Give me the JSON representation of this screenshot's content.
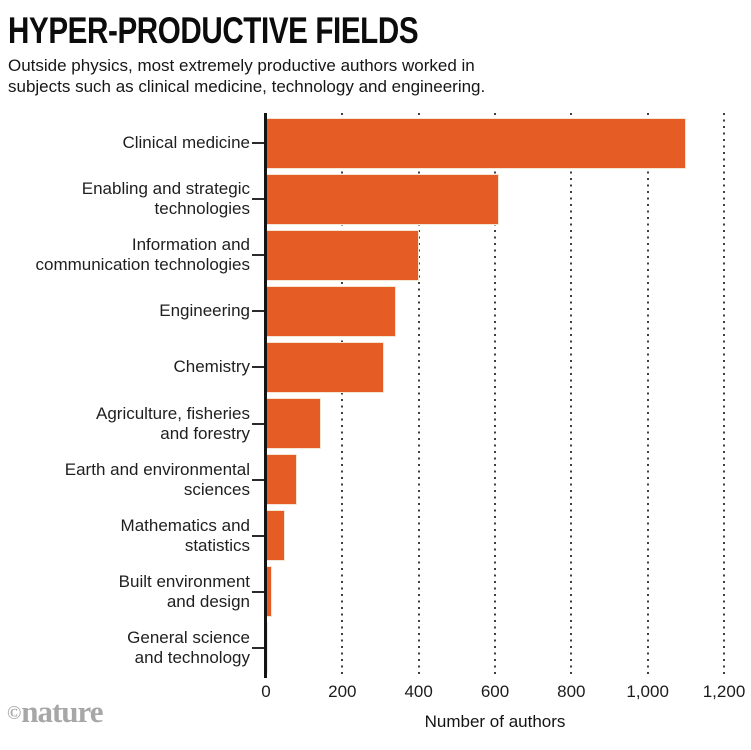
{
  "header": {
    "title": "HYPER-PRODUCTIVE FIELDS",
    "subtitle_lines": [
      "Outside physics, most extremely productive authors worked in",
      "subjects such as clinical medicine, technology and engineering."
    ]
  },
  "footer": {
    "credit_symbol": "©",
    "credit_name": "nature"
  },
  "chart_data": {
    "type": "bar",
    "orientation": "horizontal",
    "title": "HYPER-PRODUCTIVE FIELDS",
    "subtitle": "Outside physics, most extremely productive authors worked in subjects such as clinical medicine, technology and engineering.",
    "categories": [
      "Clinical medicine",
      "Enabling and strategic technologies",
      "Information and communication technologies",
      "Engineering",
      "Chemistry",
      "Agriculture, fisheries and forestry",
      "Earth and environmental sciences",
      "Mathematics and statistics",
      "Built environment and design",
      "General science and technology"
    ],
    "label_lines": [
      [
        "Clinical medicine"
      ],
      [
        "Enabling and strategic",
        "technologies"
      ],
      [
        "Information and",
        "communication technologies"
      ],
      [
        "Engineering"
      ],
      [
        "Chemistry"
      ],
      [
        "Agriculture, fisheries",
        "and forestry"
      ],
      [
        "Earth and environmental",
        "sciences"
      ],
      [
        "Mathematics and",
        "statistics"
      ],
      [
        "Built environment",
        "and design"
      ],
      [
        "General science",
        "and technology"
      ]
    ],
    "values": [
      1100,
      610,
      400,
      340,
      310,
      145,
      80,
      50,
      15,
      5
    ],
    "xlabel": "Number of authors",
    "ylabel": "",
    "xlim": [
      0,
      1200
    ],
    "xticks": [
      0,
      200,
      400,
      600,
      800,
      1000,
      1200
    ],
    "xtick_labels": [
      "0",
      "200",
      "400",
      "600",
      "800",
      "1,000",
      "1,200"
    ],
    "bar_color": "#e55c25",
    "axis_color": "#141414",
    "grid": "vertical-dotted",
    "legend": "none"
  }
}
